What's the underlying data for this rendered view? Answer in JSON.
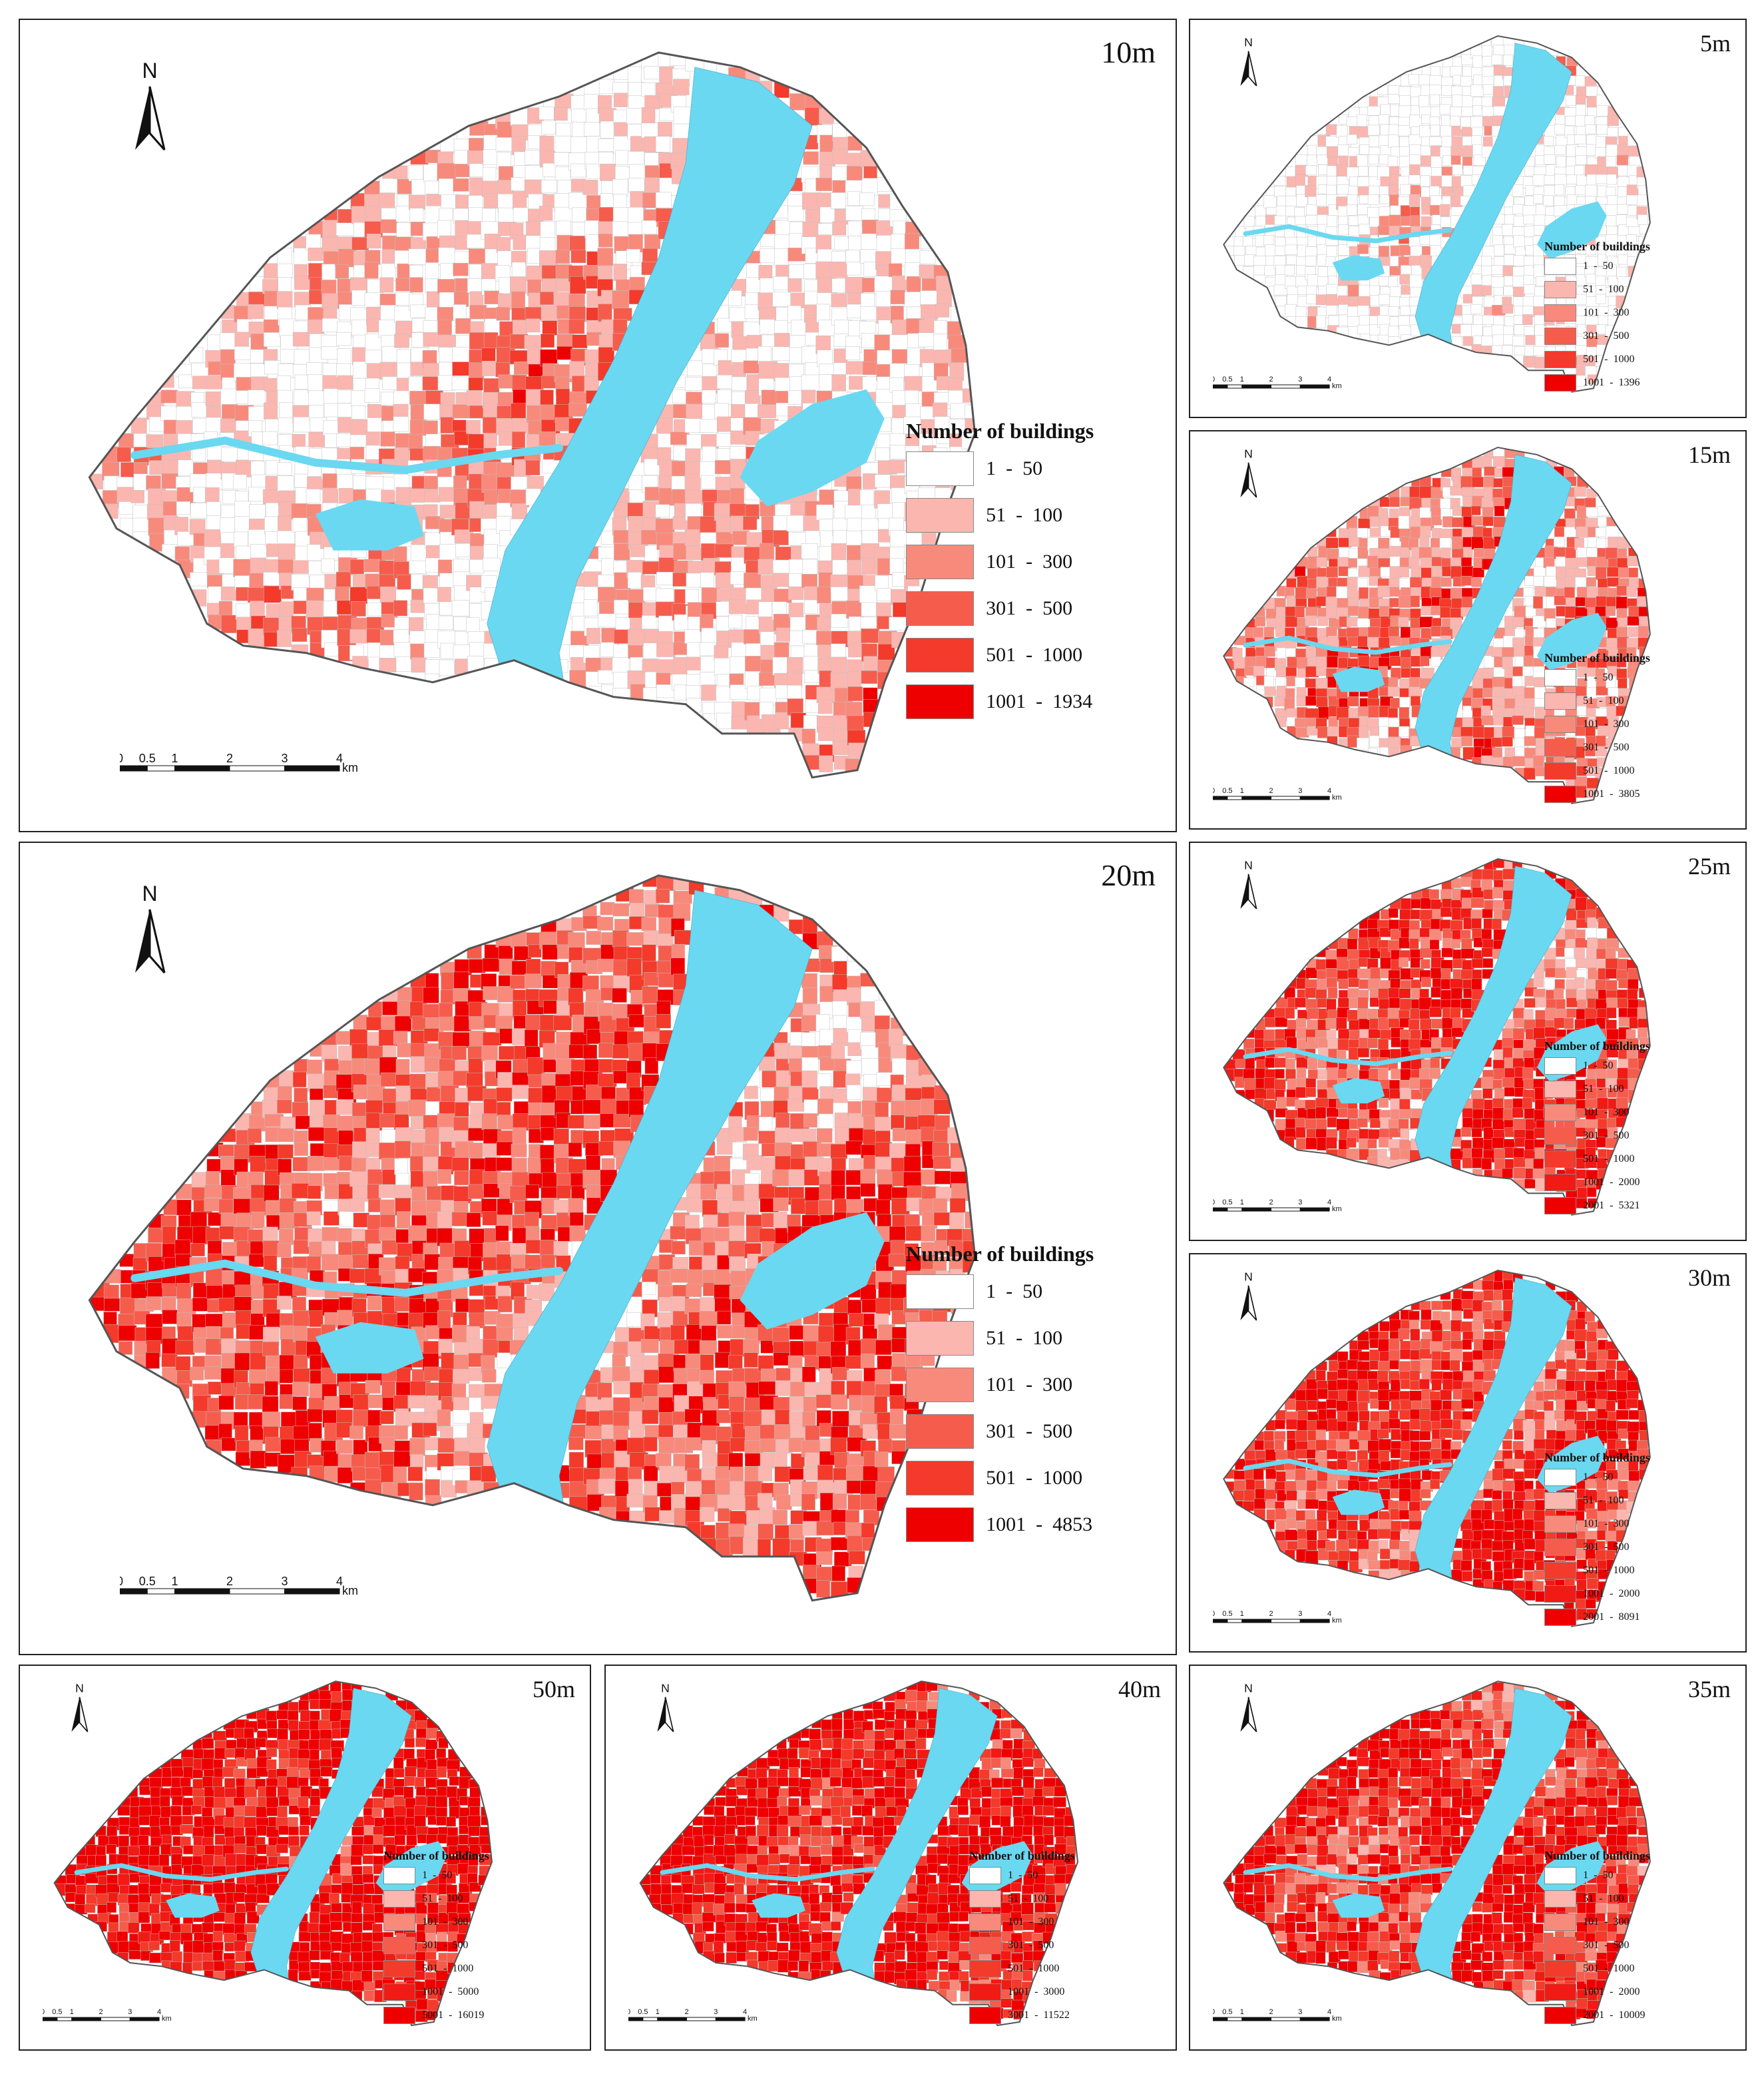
{
  "colors": {
    "water": "#6ad8f0",
    "outline": "#555555",
    "parcel_line": "#c0c0c0",
    "classes": [
      "#ffffff",
      "#fbb6b0",
      "#f88a7c",
      "#f65c4c",
      "#f43a2a",
      "#f11a14",
      "#ee0000"
    ]
  },
  "icons": {
    "north": "north-arrow-icon"
  },
  "common": {
    "north_label": "N",
    "legend_title": "Number of buildings",
    "scale_unit": "km",
    "scale_ticks": [
      "0",
      "0.5",
      "1",
      "2",
      "3",
      "4"
    ]
  },
  "panels": [
    {
      "id": "p10",
      "title": "10m",
      "density": 0.3,
      "legend": [
        "1  -  50",
        "51  -  100",
        "101  -  300",
        "301  -  500",
        "501  -  1000",
        "1001  -  1934"
      ]
    },
    {
      "id": "p5",
      "title": "5m",
      "density": 0.1,
      "legend": [
        "1  -  50",
        "51  -  100",
        "101  -  300",
        "301  -  500",
        "501  -  1000",
        "1001  -  1396"
      ]
    },
    {
      "id": "p15",
      "title": "15m",
      "density": 0.45,
      "legend": [
        "1  -  50",
        "51  -  100",
        "101  -  300",
        "301  -  500",
        "501  -  1000",
        "1001  -  3805"
      ]
    },
    {
      "id": "p20",
      "title": "20m",
      "density": 0.55,
      "legend": [
        "1  -  50",
        "51  -  100",
        "101  -  300",
        "301  -  500",
        "501  -  1000",
        "1001  -  4853"
      ]
    },
    {
      "id": "p25",
      "title": "25m",
      "density": 0.65,
      "legend": [
        "1  -  50",
        "51  -  100",
        "101  -  300",
        "301  -  500",
        "501  -  1000",
        "1001  -  2000",
        "2001  -  5321"
      ]
    },
    {
      "id": "p30",
      "title": "30m",
      "density": 0.72,
      "legend": [
        "1  -  50",
        "51  -  100",
        "101  -  300",
        "301  -  500",
        "501  -  1000",
        "1001  -  2000",
        "2001  -  8091"
      ]
    },
    {
      "id": "p50",
      "title": "50m",
      "density": 0.88,
      "legend": [
        "1  -  50",
        "51  -  100",
        "101  -  300",
        "301  -  500",
        "501  -  1000",
        "1001  -  5000",
        "5001  -  16019"
      ]
    },
    {
      "id": "p40",
      "title": "40m",
      "density": 0.84,
      "legend": [
        "1  -  50",
        "51  -  100",
        "101  -  300",
        "301  -  500",
        "501  -  1000",
        "1001  -  3000",
        "3001  -  11522"
      ]
    },
    {
      "id": "p35",
      "title": "35m",
      "density": 0.78,
      "legend": [
        "1  -  50",
        "51  -  100",
        "101  -  300",
        "301  -  500",
        "501  -  1000",
        "1001  -  2000",
        "2001  -  10009"
      ]
    }
  ]
}
